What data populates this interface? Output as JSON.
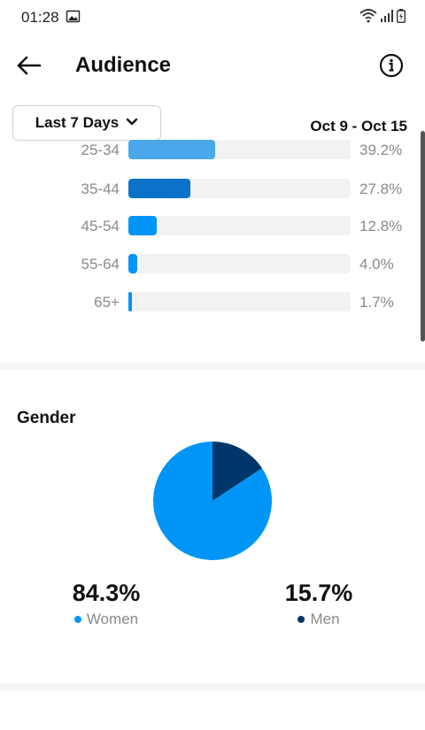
{
  "status_bar": {
    "time": "01:28"
  },
  "header": {
    "title": "Audience"
  },
  "filter": {
    "range_label": "Last 7 Days",
    "date_range": "Oct 9 - Oct 15"
  },
  "colors": {
    "bar_light": "#4aa8ea",
    "bar_dark": "#0b72c9",
    "bar_blue": "#0095f6",
    "women": "#0095f6",
    "men": "#00376b",
    "track": "#f2f2f2"
  },
  "age_ranges": [
    {
      "label": "25-34",
      "value": "39.2%",
      "pct": 39.2,
      "color": "#4aa8ea"
    },
    {
      "label": "35-44",
      "value": "27.8%",
      "pct": 27.8,
      "color": "#0b72c9"
    },
    {
      "label": "45-54",
      "value": "12.8%",
      "pct": 12.8,
      "color": "#0095f6"
    },
    {
      "label": "55-64",
      "value": "4.0%",
      "pct": 4.0,
      "color": "#0095f6"
    },
    {
      "label": "65+",
      "value": "1.7%",
      "pct": 1.7,
      "color": "#0095f6"
    }
  ],
  "gender": {
    "title": "Gender",
    "women": {
      "value": "84.3%",
      "label": "Women",
      "pct": 84.3
    },
    "men": {
      "value": "15.7%",
      "label": "Men",
      "pct": 15.7
    }
  },
  "chart_data": {
    "type": "pie",
    "categories": [
      "Women",
      "Men"
    ],
    "values": [
      84.3,
      15.7
    ],
    "colors": [
      "#0095f6",
      "#00376b"
    ]
  }
}
